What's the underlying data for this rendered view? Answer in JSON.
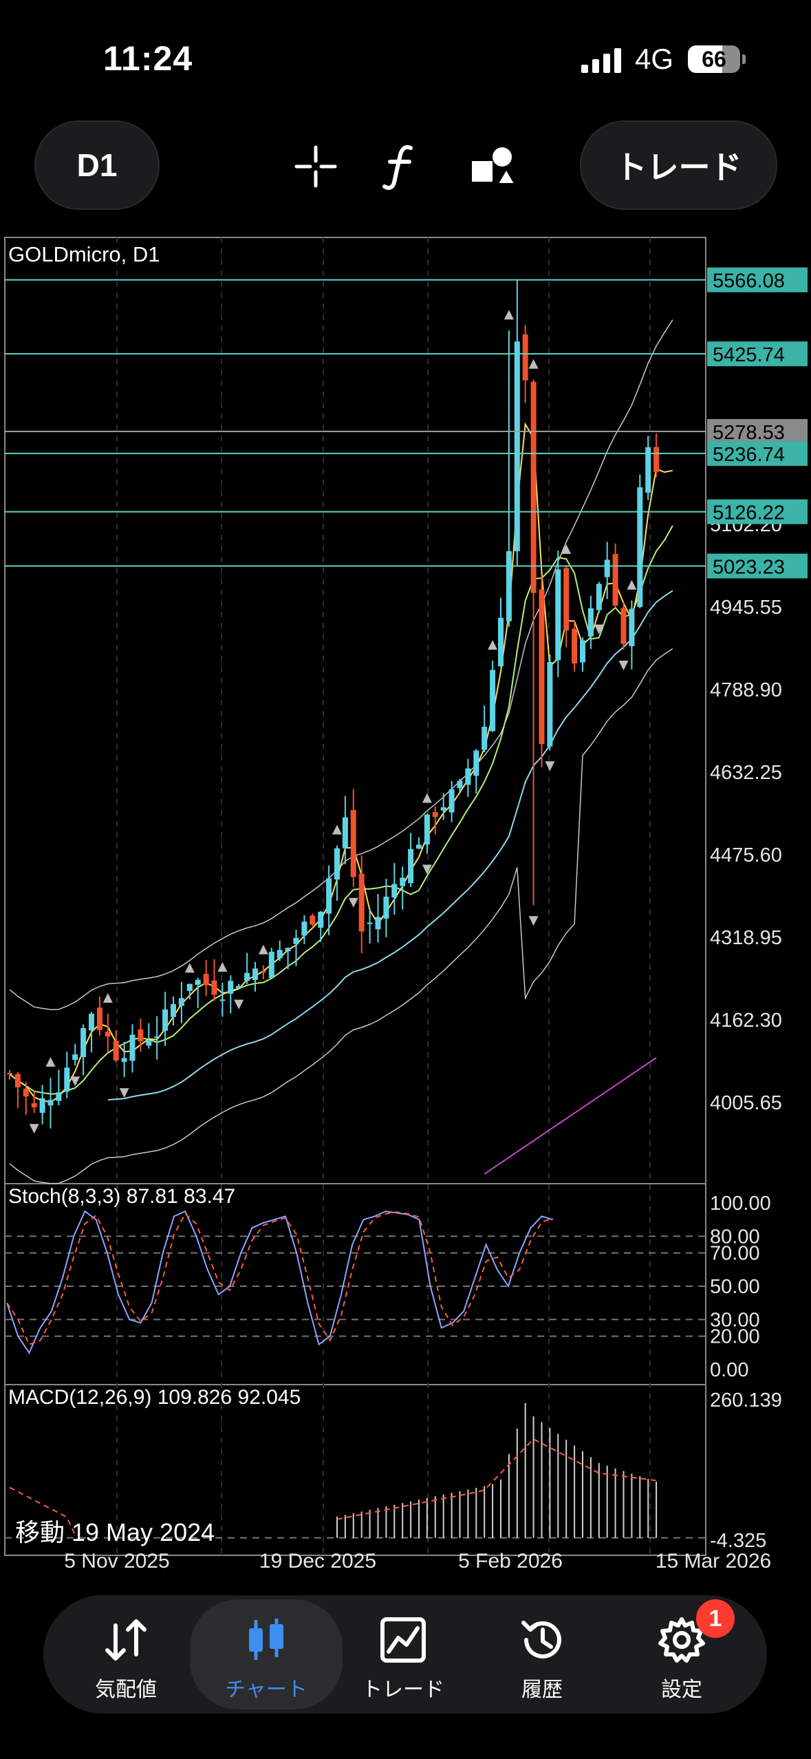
{
  "status_bar": {
    "time": "11:24",
    "network": "4G",
    "battery": "66",
    "battery_level": 0.66
  },
  "toolbar": {
    "timeframe_label": "D1",
    "trade_label": "トレード",
    "icons": [
      "crosshair-icon",
      "function-icon",
      "objects-icon"
    ]
  },
  "chart": {
    "symbol_label": "GOLDmicro, D1",
    "price_axis_labels": [
      "4945.55",
      "4788.90",
      "4632.25",
      "4475.60",
      "4318.95",
      "4162.30",
      "4005.65"
    ],
    "levels": [
      {
        "label": "5566.08",
        "kind": "line",
        "color": "#5fd3c7"
      },
      {
        "label": "5425.74",
        "kind": "line",
        "color": "#5fd3c7"
      },
      {
        "label": "5278.53",
        "kind": "bid",
        "color": "#a0a0a0"
      },
      {
        "label": "5236.74",
        "kind": "line",
        "color": "#5fd3c7"
      },
      {
        "label": "5126.22",
        "kind": "line",
        "color": "#5fd3c7"
      },
      {
        "label": "5023.23",
        "kind": "line",
        "color": "#5fd3c7"
      }
    ],
    "partial_label": "5102.20",
    "stochastic": {
      "label": "Stoch(8,3,3) 87.81 83.47",
      "axis_labels": [
        "100.00",
        "80.00",
        "70.00",
        "50.00",
        "30.00",
        "20.00",
        "0.00"
      ]
    },
    "macd": {
      "label": "MACD(12,26,9) 109.826 92.045",
      "axis_max": "260.139",
      "axis_min": "-4.325"
    },
    "time_labels": [
      "5 Nov 2025",
      "19 Dec 2025",
      "5 Feb 2026",
      "15 Mar 2026"
    ],
    "move_label": "移動 19 May 2024",
    "colors": {
      "bull": "#5fd3e6",
      "bear": "#f0522e",
      "ma_fast": "#f7e25a",
      "ma_mid": "#b4f07a",
      "ma_slow": "#8fd8ef",
      "ma_long": "#c646c8",
      "bands": "#c8c8c8",
      "level": "#5fd3c7"
    }
  },
  "tabs": [
    {
      "id": "quotes",
      "label": "気配値",
      "icon": "quotes-arrows-icon",
      "active": false
    },
    {
      "id": "chart",
      "label": "チャート",
      "icon": "candlestick-icon",
      "active": true
    },
    {
      "id": "trade",
      "label": "トレード",
      "icon": "trade-chart-icon",
      "active": false
    },
    {
      "id": "history",
      "label": "履歴",
      "icon": "history-icon",
      "active": false
    },
    {
      "id": "settings",
      "label": "設定",
      "icon": "gear-icon",
      "active": false
    }
  ],
  "settings_badge": "1"
}
